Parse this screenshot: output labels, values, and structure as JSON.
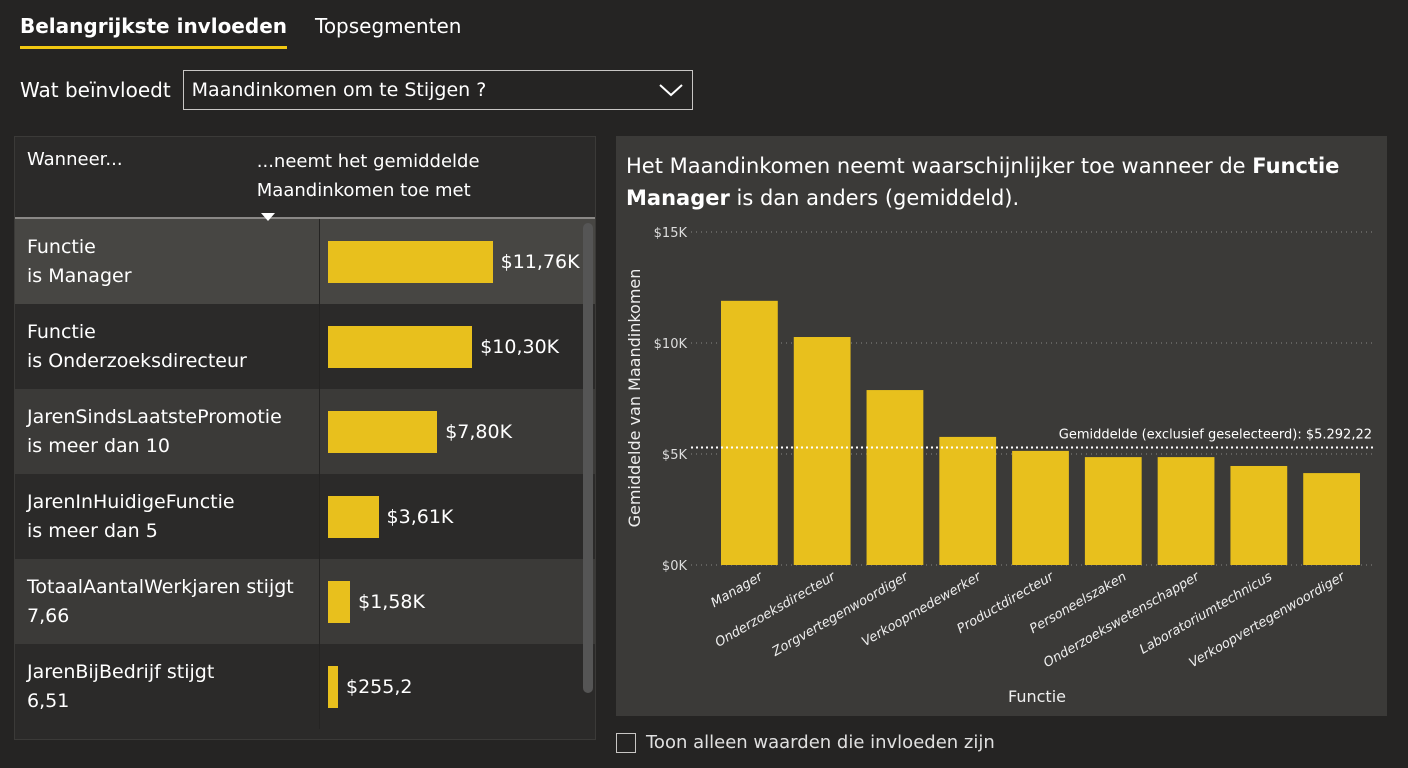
{
  "tabs": [
    "Belangrijkste invloeden",
    "Topsegmenten"
  ],
  "selector": {
    "label": "Wat beïnvloedt",
    "value": "Maandinkomen om te Stijgen ?"
  },
  "table": {
    "col1": "Wanneer...",
    "col2": "...neemt het gemiddelde Maandinkomen toe met",
    "rows": [
      {
        "line1": "Functie",
        "line2": "is Manager",
        "value": 11760,
        "label": "$11,76K"
      },
      {
        "line1": "Functie",
        "line2": "is Onderzoeksdirecteur",
        "value": 10300,
        "label": "$10,30K"
      },
      {
        "line1": "JarenSindsLaatstePromotie",
        "line2": "is meer dan 10",
        "value": 7800,
        "label": "$7,80K"
      },
      {
        "line1": "JarenInHuidigeFunctie",
        "line2": "is meer dan 5",
        "value": 3610,
        "label": "$3,61K"
      },
      {
        "line1": "TotaalAantalWerkjaren stijgt",
        "line2": "7,66",
        "value": 1580,
        "label": "$1,58K"
      },
      {
        "line1": "JarenBijBedrijf stijgt",
        "line2": "6,51",
        "value": 255.2,
        "label": "$255,2"
      }
    ]
  },
  "detail": {
    "title_pre": "Het Maandinkomen neemt waarschijnlijker toe wanneer de ",
    "title_bold": "Functie Manager",
    "title_post": " is dan anders (gemiddeld)."
  },
  "checkbox_label": "Toon alleen waarden die invloeden zijn",
  "colors": {
    "bar": "#e8c01d",
    "accent": "#f2c811"
  },
  "chart_data": {
    "type": "bar",
    "categories": [
      "Manager",
      "Onderzoeksdirecteur",
      "Zorgvertegenwoordiger",
      "Verkoopmedewerker",
      "Productdirecteur",
      "Personeelszaken",
      "Onderzoekswetenschapper",
      "Laboratoriumtechnicus",
      "Verkoopvertegenwoordiger"
    ],
    "values": [
      11900,
      10270,
      7880,
      5770,
      5140,
      4860,
      4860,
      4460,
      4140
    ],
    "xlabel": "Functie",
    "ylabel": "Gemiddelde van Maandinkomen",
    "ylim": [
      0,
      15000
    ],
    "yticks": [
      "$0K",
      "$5K",
      "$10K",
      "$15K"
    ],
    "reference_line": {
      "value": 5292.22,
      "label": "Gemiddelde (exclusief geselecteerd): $5.292,22"
    },
    "grid": true
  }
}
